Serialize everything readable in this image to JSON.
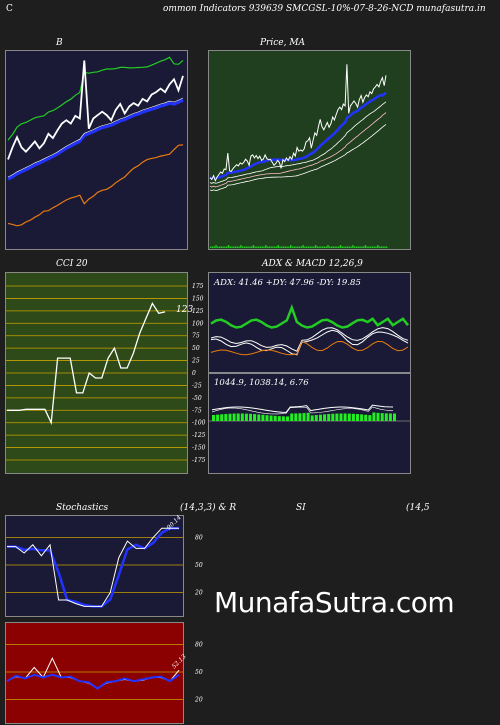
{
  "header": {
    "left_letter": "C",
    "title": "ommon  Indicators 939639 SMCGSL-10%-07-8-26-NCD munafasutra.in",
    "watermark": "MunafaSutra.com"
  },
  "colors": {
    "price_bg": "#1f3f1f",
    "dark_bg": "#1a1a36",
    "cci_bg": "#2e4a18",
    "rsi_bg": "#8b0000",
    "white_line": "#ffffff",
    "blue_line": "#2233ff",
    "orange_line": "#e87a10",
    "green_line": "#22cc22"
  },
  "chart_data": [
    {
      "id": "bb",
      "type": "line",
      "title": "B",
      "series": [
        {
          "role": "price",
          "values": [
            71.5,
            71.2,
            71.8,
            71.0,
            71.6,
            72.0,
            72.4,
            72.2,
            72.9,
            72.8,
            75.5,
            72.6,
            72.5,
            73.0,
            73.3,
            73.6,
            73.4,
            73.9,
            73.7,
            74.0,
            74.5,
            74.2,
            73.5,
            75.0,
            75.2,
            74.7,
            75.1,
            74.6,
            75.0,
            74.3,
            74.5,
            75.2,
            74.6,
            74.4,
            74.5,
            74.0,
            73.5,
            73.8,
            74.3,
            74.0,
            73.0,
            74.4,
            74.1,
            74.7,
            74.3,
            74.9,
            74.5,
            75.5,
            75.0,
            76.4,
            75.8,
            76.0,
            75.8,
            76.2,
            77.3,
            77.5,
            78.0,
            76.3,
            77.6,
            78.8,
            78.4,
            79.8,
            81.0,
            79.8,
            79.3,
            79.9,
            80.5,
            79.7,
            80.3,
            81.4,
            80.9,
            81.8,
            82.6,
            83.0,
            82.6,
            83.5,
            83.2,
            90.0,
            82.0,
            83.2,
            83.6,
            84.0,
            83.6,
            83.0,
            84.2,
            84.9,
            83.8,
            84.6,
            85.0,
            84.7,
            85.5,
            85.2,
            86.0,
            86.3,
            86.7,
            86.3,
            87.2,
            87.8,
            86.5,
            88.2
          ]
        }
      ]
    },
    {
      "id": "cci",
      "type": "line",
      "title": "CCI 20",
      "y_ticks": [
        175,
        150,
        125,
        100,
        75,
        50,
        25,
        0,
        -25,
        -50,
        -75,
        -100,
        -125,
        -150,
        -175
      ],
      "ylim": [
        -175,
        175
      ],
      "last_value_label": "123",
      "values": [
        -75,
        -75,
        -75,
        -73,
        -73,
        -73,
        -73,
        -100,
        30,
        30,
        30,
        -40,
        -40,
        0,
        -10,
        -10,
        30,
        50,
        10,
        10,
        40,
        80,
        110,
        140,
        120,
        123
      ]
    },
    {
      "id": "adx",
      "type": "line",
      "title": "ADX  & MACD 12,26,9",
      "readout": "ADX: 41.46   +DY: 47.96   -DY: 19.85",
      "macd_readout": "1044.9,  1038.14,  6.76",
      "adx": 41.46,
      "plus_di": 47.96,
      "minus_di": 19.85,
      "macd": 1044.9,
      "signal": 1038.14,
      "histogram": 6.76
    },
    {
      "id": "stoch",
      "type": "line",
      "title": "Stochastics",
      "params": "(14,3,3) & R",
      "y_ticks": [
        80,
        50,
        20
      ],
      "ylim": [
        0,
        100
      ],
      "last_value_label": "90.14",
      "values": [
        70,
        70,
        63,
        72,
        60,
        72,
        12,
        12,
        8,
        5,
        5,
        5,
        20,
        58,
        76,
        68,
        68,
        80,
        90,
        90,
        90
      ]
    },
    {
      "id": "rsi",
      "type": "line",
      "title": "SI",
      "params": "(14,5",
      "y_ticks": [
        80,
        50,
        20
      ],
      "ylim": [
        0,
        100
      ],
      "last_value_label": "52.13",
      "values": [
        40,
        45,
        43,
        55,
        44,
        65,
        44,
        44,
        40,
        38,
        32,
        38,
        40,
        42,
        40,
        41,
        44,
        44,
        40,
        52
      ]
    }
  ]
}
